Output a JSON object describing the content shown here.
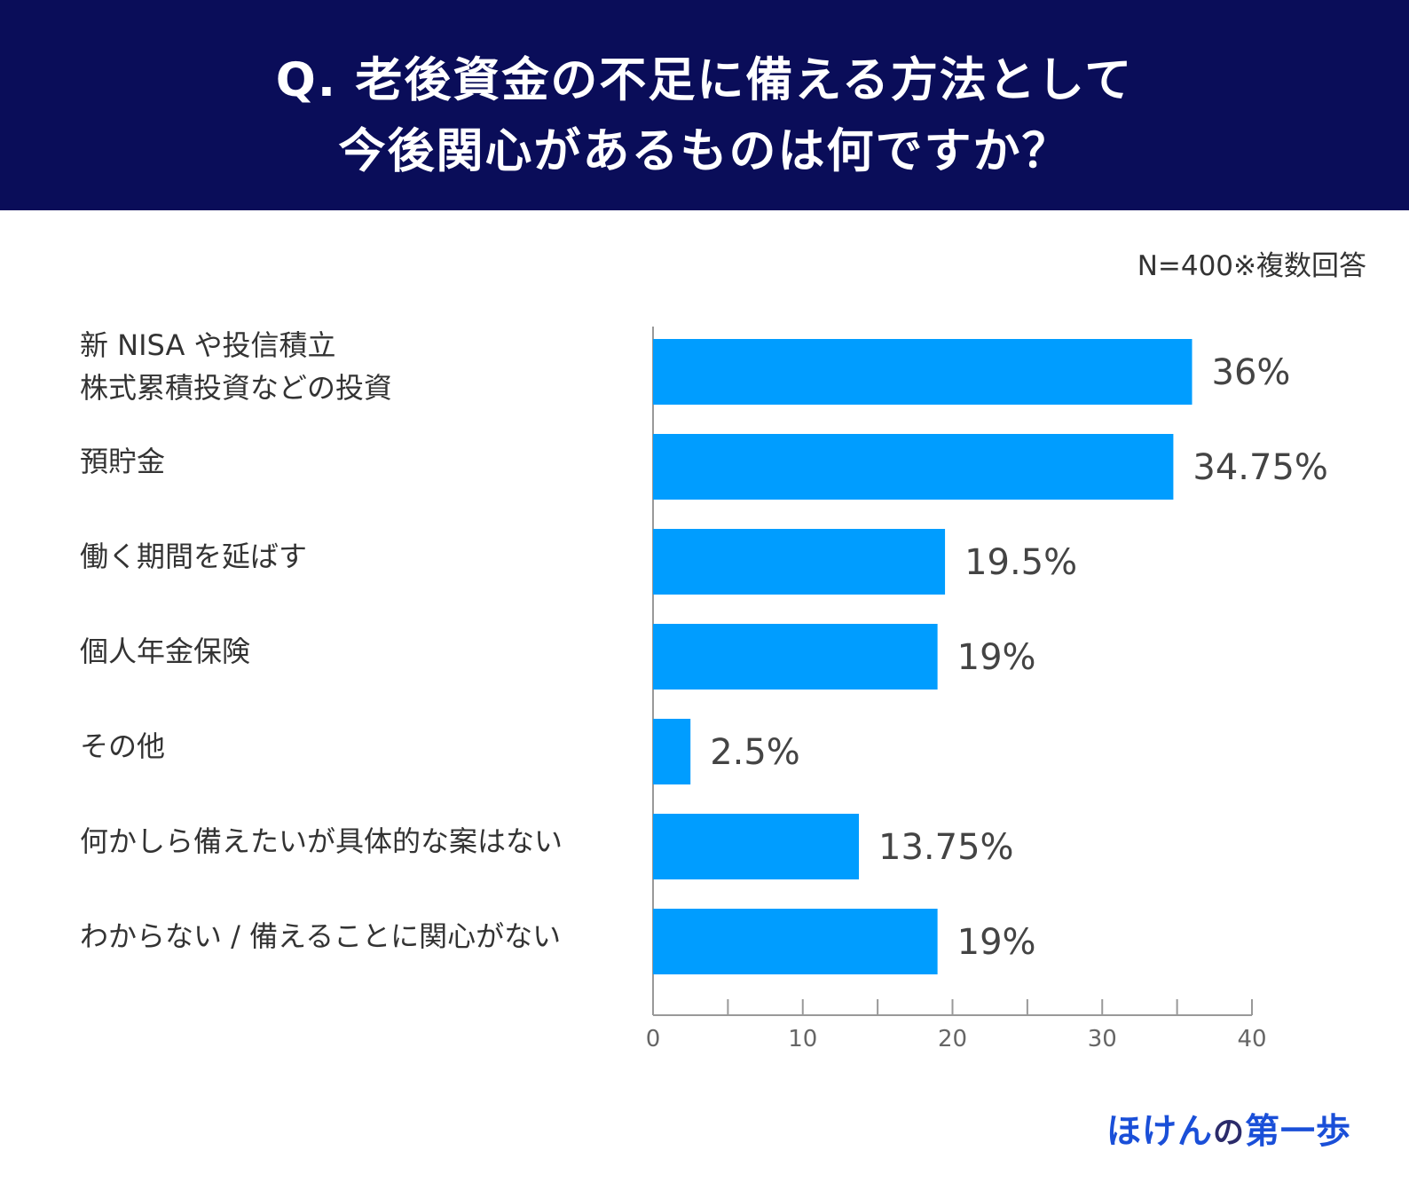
{
  "header": {
    "title_line1": "Q. 老後資金の不足に備える方法として",
    "title_line2": "今後関心があるものは何ですか？"
  },
  "note": "N=400※複数回答",
  "chart_data": {
    "type": "bar",
    "orientation": "horizontal",
    "categories": [
      "新 NISA や投信積立\n株式累積投資などの投資",
      "預貯金",
      "働く期間を延ばす",
      "個人年金保険",
      "その他",
      "何かしら備えたいが具体的な案はない",
      "わからない / 備えることに関心がない"
    ],
    "values": [
      36,
      34.75,
      19.5,
      19,
      2.5,
      13.75,
      19
    ],
    "value_labels": [
      "36%",
      "34.75%",
      "19.5%",
      "19%",
      "2.5%",
      "13.75%",
      "19%"
    ],
    "xlim": [
      0,
      40
    ],
    "x_ticks": [
      0,
      10,
      20,
      30,
      40
    ],
    "x_tick_labels": [
      "0",
      "10",
      "20",
      "30",
      "40"
    ],
    "minor_ticks": [
      5,
      15,
      25,
      35
    ],
    "bar_color": "#009dff",
    "grid": false
  },
  "logo": {
    "part1": "ほけん",
    "part2": "の",
    "part3": "第一歩"
  }
}
